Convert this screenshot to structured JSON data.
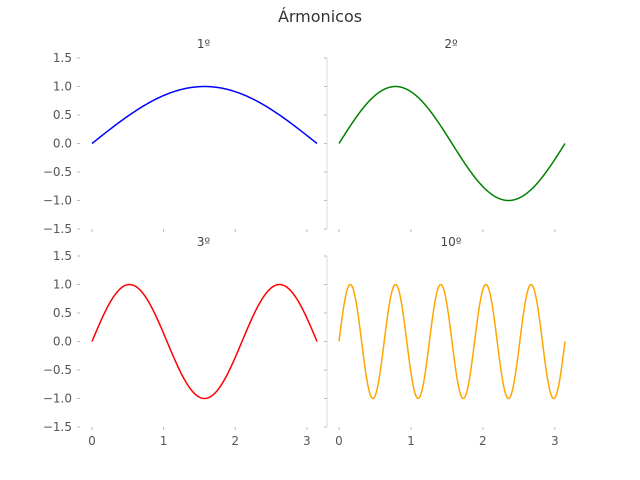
{
  "figure": {
    "title": "Ármonicos"
  },
  "chart_data": [
    {
      "type": "line",
      "title": "1º",
      "function": "sin(1x)",
      "harmonic": 1,
      "color": "#0000ff",
      "xlim": [
        0,
        3.14159
      ],
      "ylim": [
        -1.5,
        1.5
      ],
      "x": [
        0,
        0.39,
        0.79,
        1.18,
        1.57,
        1.96,
        2.36,
        2.75,
        3.14
      ],
      "y": [
        0,
        0.38,
        0.71,
        0.92,
        1.0,
        0.92,
        0.71,
        0.38,
        0
      ],
      "yticks": [
        "−1.5",
        "−1.0",
        "−0.5",
        "0.0",
        "0.5",
        "1.0",
        "1.5"
      ],
      "xticks": []
    },
    {
      "type": "line",
      "title": "2º",
      "function": "sin(2x)",
      "harmonic": 2,
      "color": "#008000",
      "xlim": [
        0,
        3.14159
      ],
      "ylim": [
        -1.5,
        1.5
      ],
      "x": [
        0,
        0.39,
        0.79,
        1.18,
        1.57,
        1.96,
        2.36,
        2.75,
        3.14
      ],
      "y": [
        0,
        0.71,
        1.0,
        0.71,
        0,
        -0.71,
        -1.0,
        -0.71,
        0
      ],
      "yticks": [],
      "xticks": []
    },
    {
      "type": "line",
      "title": "3º",
      "function": "sin(3x)",
      "harmonic": 3,
      "color": "#ff0000",
      "xlim": [
        0,
        3.14159
      ],
      "ylim": [
        -1.5,
        1.5
      ],
      "x": [
        0,
        0.52,
        1.05,
        1.57,
        2.09,
        2.62,
        3.14
      ],
      "y": [
        0,
        1.0,
        0,
        -1.0,
        0,
        1.0,
        0
      ],
      "yticks": [
        "−1.5",
        "−1.0",
        "−0.5",
        "0.0",
        "0.5",
        "1.0",
        "1.5"
      ],
      "xticks": [
        "0",
        "1",
        "2",
        "3"
      ]
    },
    {
      "type": "line",
      "title": "10º",
      "function": "sin(10x)",
      "harmonic": 10,
      "color": "#ffa500",
      "xlim": [
        0,
        3.14159
      ],
      "ylim": [
        -1.5,
        1.5
      ],
      "x": [
        0,
        0.157,
        0.314,
        0.471,
        0.628,
        0.785,
        0.942,
        1.1,
        1.257,
        1.414,
        1.571,
        1.728,
        1.885,
        2.042,
        2.199,
        2.356,
        2.513,
        2.67,
        2.827,
        2.985,
        3.142
      ],
      "y": [
        0,
        1.0,
        0,
        -1.0,
        0,
        1.0,
        0,
        -1.0,
        0,
        1.0,
        0,
        -1.0,
        0,
        1.0,
        0,
        -1.0,
        0,
        1.0,
        0,
        -1.0,
        0
      ],
      "yticks": [],
      "xticks": [
        "0",
        "1",
        "2",
        "3"
      ]
    }
  ]
}
